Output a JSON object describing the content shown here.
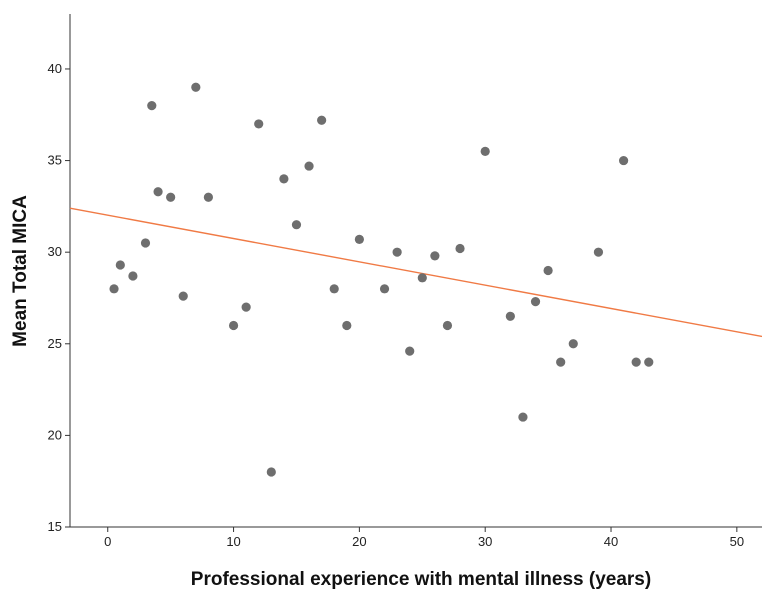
{
  "chart_data": {
    "type": "scatter",
    "xlabel": "Professional experience with mental illness (years)",
    "ylabel": "Mean Total MICA",
    "xlim": [
      -3,
      52
    ],
    "ylim": [
      15,
      43
    ],
    "xticks": [
      0,
      10,
      20,
      30,
      40,
      50
    ],
    "yticks": [
      15,
      20,
      25,
      30,
      35,
      40
    ],
    "xtick_labels": [
      "0",
      "10",
      "20",
      "30",
      "40",
      "50"
    ],
    "ytick_labels": [
      "15",
      "20",
      "25",
      "30",
      "35",
      "40"
    ],
    "grid": false,
    "legend": "none",
    "point_color": "#6e6e6e",
    "fit_line_color": "#f07a45",
    "axis_color": "#333333",
    "points": [
      {
        "x": 0.5,
        "y": 28.0
      },
      {
        "x": 1,
        "y": 29.3
      },
      {
        "x": 2,
        "y": 28.7
      },
      {
        "x": 3,
        "y": 30.5
      },
      {
        "x": 3.5,
        "y": 38.0
      },
      {
        "x": 4,
        "y": 33.3
      },
      {
        "x": 5,
        "y": 33.0
      },
      {
        "x": 6,
        "y": 27.6
      },
      {
        "x": 7,
        "y": 39.0
      },
      {
        "x": 8,
        "y": 33.0
      },
      {
        "x": 10,
        "y": 26.0
      },
      {
        "x": 11,
        "y": 27.0
      },
      {
        "x": 12,
        "y": 37.0
      },
      {
        "x": 13,
        "y": 18.0
      },
      {
        "x": 14,
        "y": 34.0
      },
      {
        "x": 15,
        "y": 31.5
      },
      {
        "x": 16,
        "y": 34.7
      },
      {
        "x": 17,
        "y": 37.2
      },
      {
        "x": 18,
        "y": 28.0
      },
      {
        "x": 19,
        "y": 26.0
      },
      {
        "x": 20,
        "y": 30.7
      },
      {
        "x": 22,
        "y": 28.0
      },
      {
        "x": 23,
        "y": 30.0
      },
      {
        "x": 24,
        "y": 24.6
      },
      {
        "x": 25,
        "y": 28.6
      },
      {
        "x": 26,
        "y": 29.8
      },
      {
        "x": 27,
        "y": 26.0
      },
      {
        "x": 28,
        "y": 30.2
      },
      {
        "x": 30,
        "y": 35.5
      },
      {
        "x": 32,
        "y": 26.5
      },
      {
        "x": 33,
        "y": 21.0
      },
      {
        "x": 34,
        "y": 27.3
      },
      {
        "x": 35,
        "y": 29.0
      },
      {
        "x": 36,
        "y": 24.0
      },
      {
        "x": 37,
        "y": 25.0
      },
      {
        "x": 39,
        "y": 30.0
      },
      {
        "x": 41,
        "y": 35.0
      },
      {
        "x": 42,
        "y": 24.0
      },
      {
        "x": 43,
        "y": 24.0
      }
    ],
    "fit_line": {
      "x": [
        -3,
        52
      ],
      "y": [
        32.4,
        25.4
      ]
    }
  }
}
